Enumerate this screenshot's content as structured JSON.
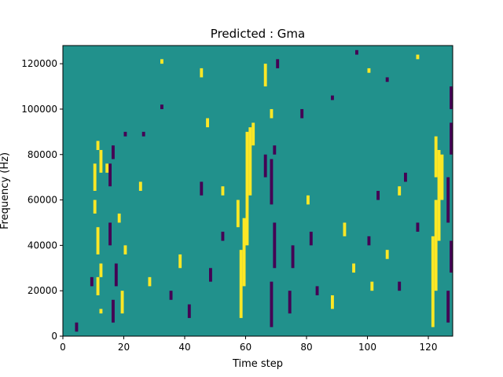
{
  "chart_data": {
    "type": "heatmap",
    "title": "Predicted : Gma",
    "xlabel": "Time step",
    "ylabel": "Frequency (Hz)",
    "xlim": [
      0,
      128
    ],
    "ylim": [
      0,
      128000
    ],
    "x_ticks": [
      "0",
      "20",
      "40",
      "60",
      "80",
      "100",
      "120"
    ],
    "y_ticks": [
      "0",
      "20000",
      "40000",
      "60000",
      "80000",
      "100000",
      "120000"
    ],
    "colormap": {
      "low": "#440154",
      "mid": "#21918c",
      "high": "#fde725"
    },
    "background_value": "mid",
    "high_cells": [
      [
        12,
        10,
        2
      ],
      [
        11,
        18,
        8
      ],
      [
        12,
        26,
        6
      ],
      [
        11,
        36,
        12
      ],
      [
        10,
        54,
        6
      ],
      [
        10,
        64,
        12
      ],
      [
        12,
        72,
        10
      ],
      [
        11,
        82,
        4
      ],
      [
        58,
        8,
        30
      ],
      [
        59,
        22,
        30
      ],
      [
        60,
        40,
        50
      ],
      [
        61,
        62,
        30
      ],
      [
        62,
        84,
        10
      ],
      [
        57,
        48,
        12
      ],
      [
        121,
        4,
        40
      ],
      [
        122,
        20,
        40
      ],
      [
        123,
        42,
        40
      ],
      [
        124,
        60,
        20
      ],
      [
        122,
        70,
        18
      ],
      [
        19,
        10,
        10
      ],
      [
        20,
        36,
        4
      ],
      [
        38,
        30,
        6
      ],
      [
        28,
        22,
        4
      ],
      [
        88,
        12,
        6
      ],
      [
        95,
        28,
        4
      ],
      [
        92,
        44,
        6
      ],
      [
        101,
        20,
        4
      ],
      [
        32,
        120,
        2
      ],
      [
        45,
        114,
        4
      ],
      [
        66,
        110,
        10
      ],
      [
        68,
        96,
        4
      ],
      [
        100,
        116,
        2
      ],
      [
        116,
        122,
        2
      ],
      [
        14,
        72,
        4
      ],
      [
        18,
        50,
        4
      ],
      [
        25,
        64,
        4
      ],
      [
        52,
        62,
        4
      ],
      [
        47,
        92,
        4
      ],
      [
        80,
        58,
        4
      ],
      [
        106,
        34,
        4
      ],
      [
        110,
        62,
        4
      ]
    ],
    "low_cells": [
      [
        16,
        6,
        10
      ],
      [
        17,
        22,
        10
      ],
      [
        15,
        40,
        10
      ],
      [
        15,
        66,
        10
      ],
      [
        16,
        78,
        6
      ],
      [
        20,
        88,
        2
      ],
      [
        68,
        4,
        20
      ],
      [
        69,
        30,
        20
      ],
      [
        68,
        58,
        20
      ],
      [
        69,
        80,
        4
      ],
      [
        66,
        70,
        10
      ],
      [
        74,
        10,
        10
      ],
      [
        75,
        30,
        10
      ],
      [
        83,
        18,
        4
      ],
      [
        81,
        40,
        6
      ],
      [
        126,
        6,
        14
      ],
      [
        127,
        28,
        14
      ],
      [
        126,
        50,
        20
      ],
      [
        127,
        80,
        14
      ],
      [
        127,
        100,
        10
      ],
      [
        41,
        8,
        6
      ],
      [
        48,
        24,
        6
      ],
      [
        52,
        42,
        4
      ],
      [
        45,
        62,
        6
      ],
      [
        100,
        40,
        4
      ],
      [
        103,
        60,
        4
      ],
      [
        110,
        20,
        4
      ],
      [
        116,
        46,
        4
      ],
      [
        112,
        68,
        4
      ],
      [
        26,
        88,
        2
      ],
      [
        32,
        100,
        2
      ],
      [
        78,
        96,
        4
      ],
      [
        88,
        104,
        2
      ],
      [
        70,
        118,
        4
      ],
      [
        96,
        124,
        2
      ],
      [
        106,
        112,
        2
      ],
      [
        4,
        2,
        4
      ],
      [
        9,
        22,
        4
      ],
      [
        35,
        16,
        4
      ]
    ]
  }
}
